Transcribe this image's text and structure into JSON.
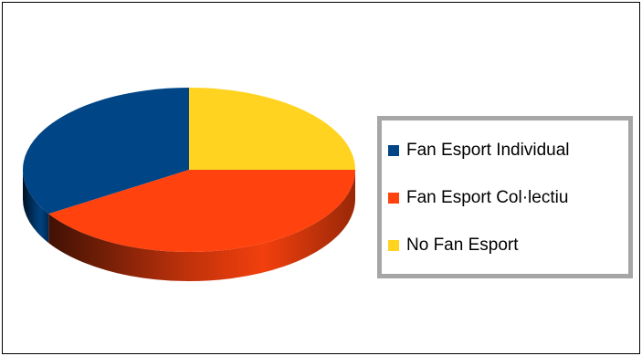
{
  "chart_data": {
    "type": "pie",
    "categories": [
      "Fan Esport Individual",
      "Fan Esport Col·lectiu",
      "No Fan Esport"
    ],
    "values": [
      34,
      41,
      25
    ],
    "colors": [
      "#004586",
      "#ff420e",
      "#ffd320"
    ],
    "style": "3d",
    "legend": "right"
  }
}
